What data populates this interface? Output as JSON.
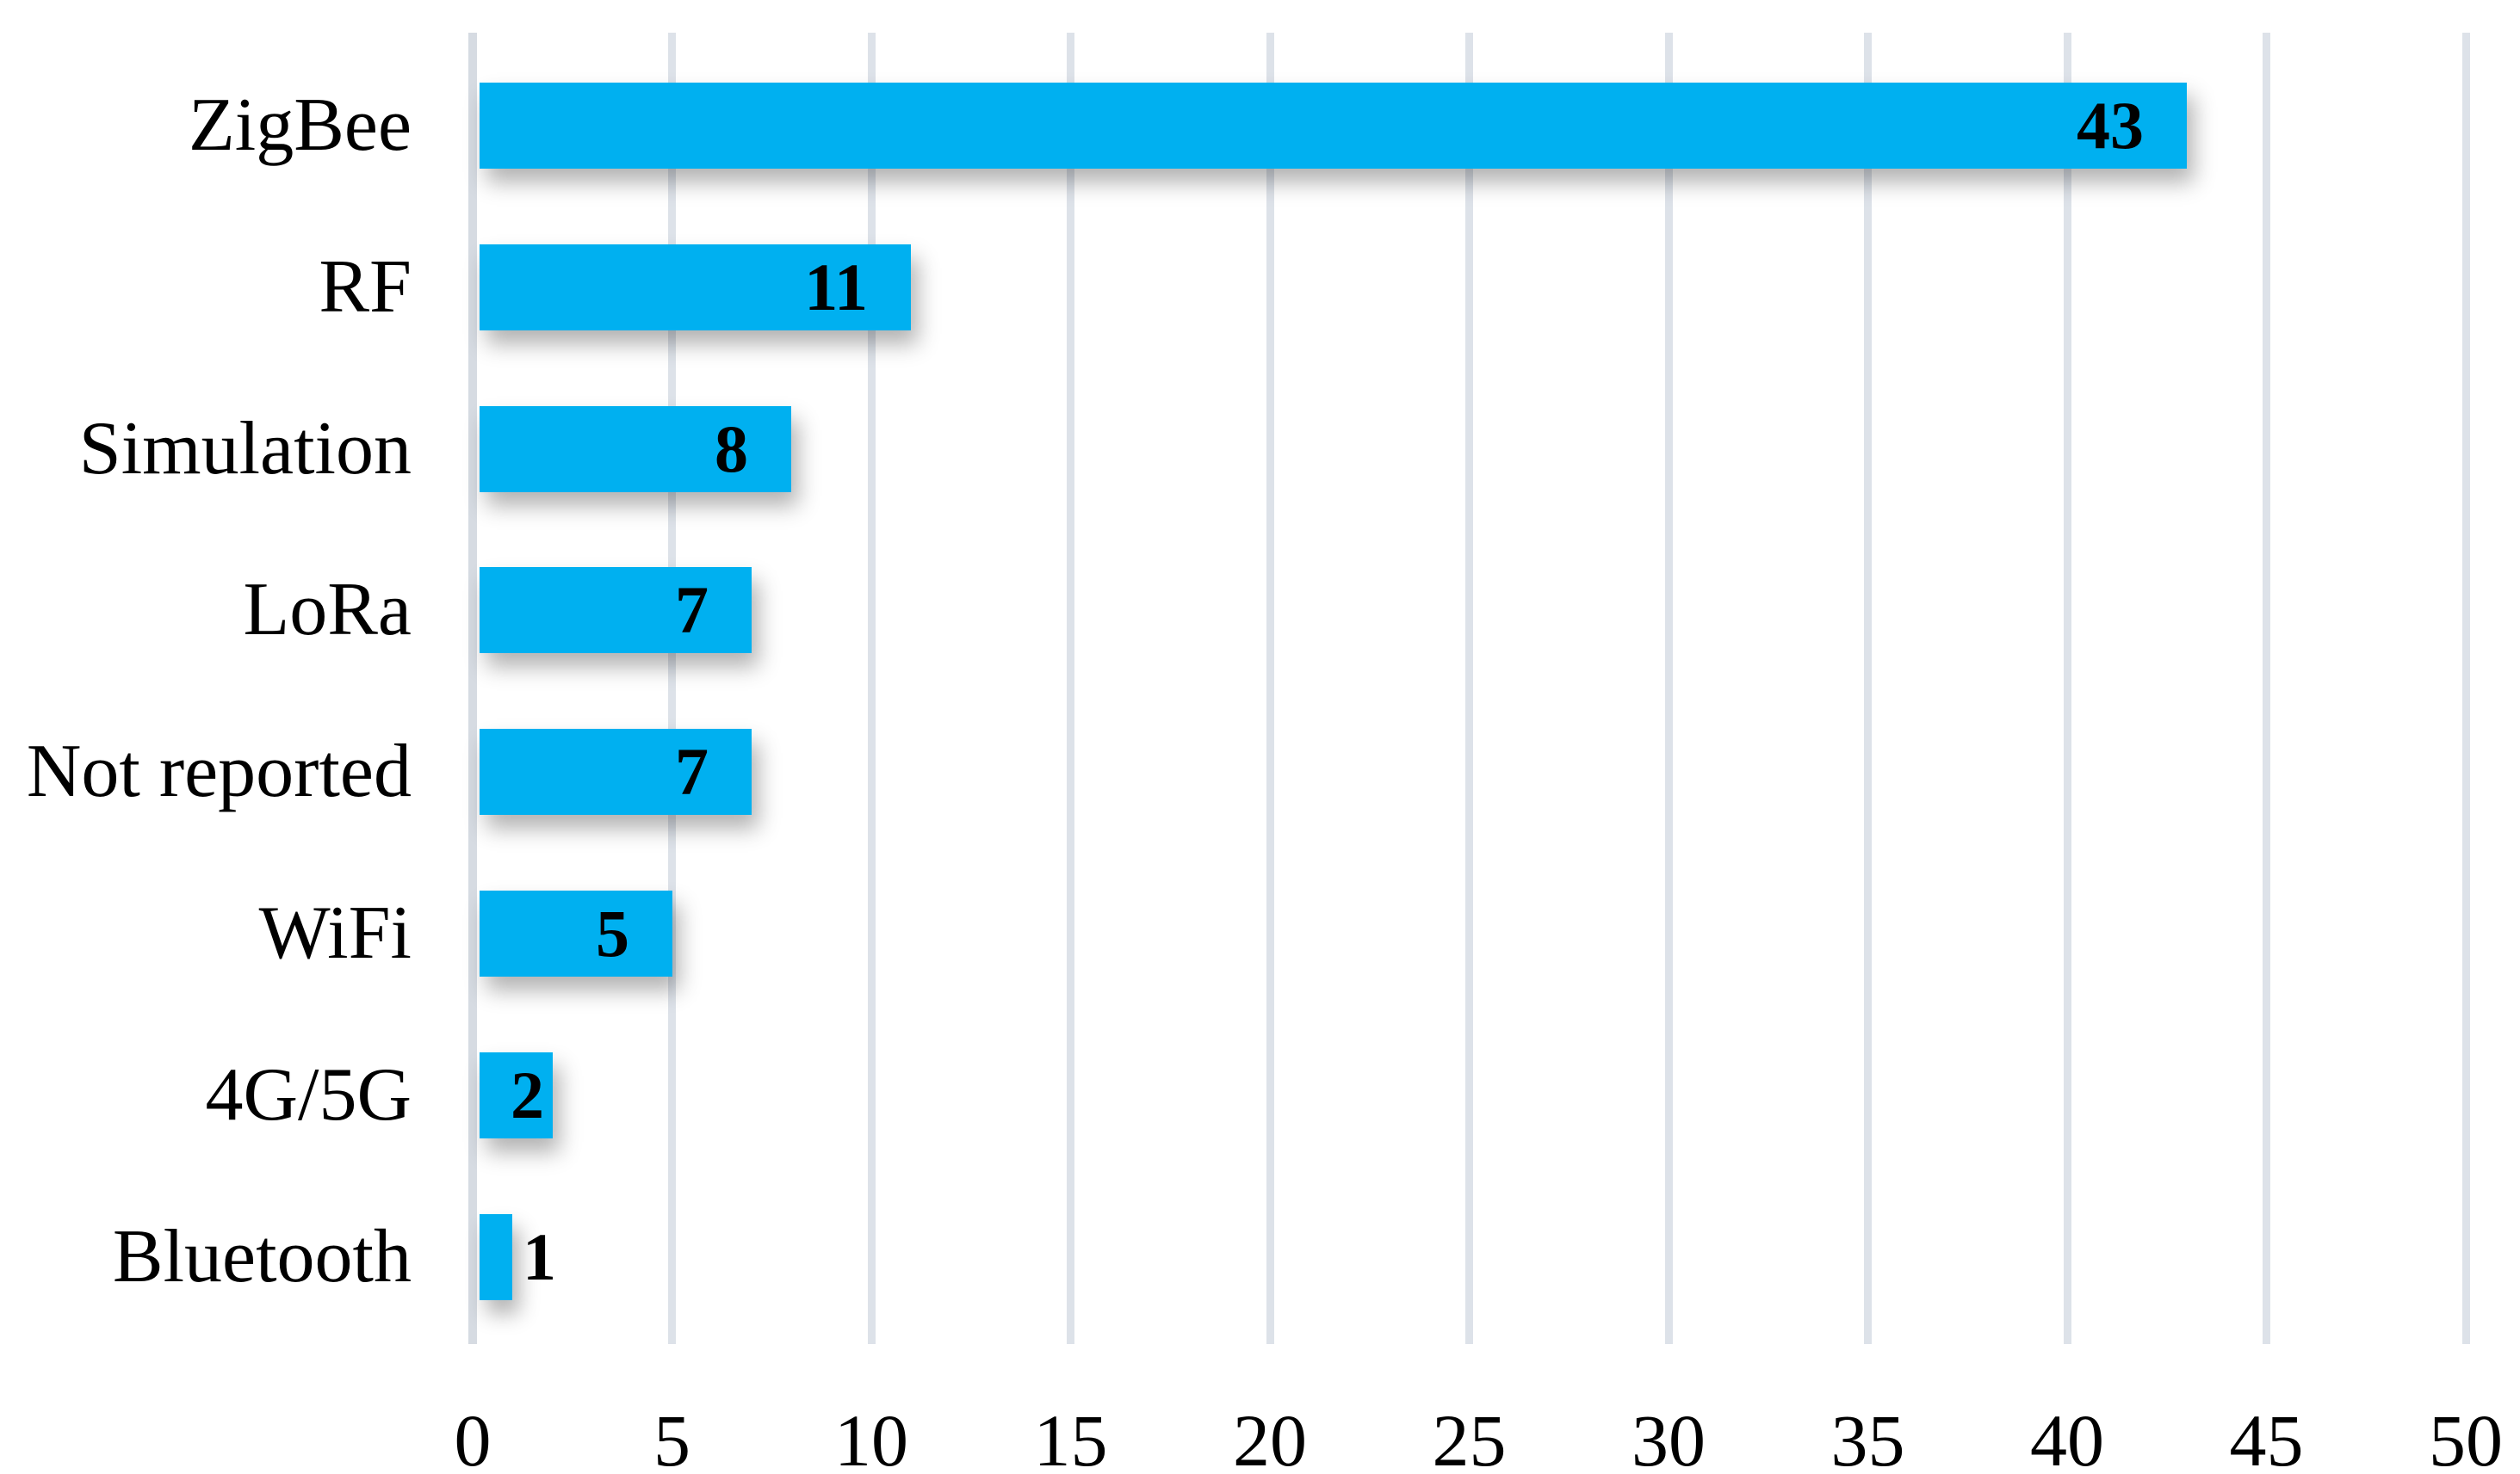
{
  "chart_data": {
    "type": "bar",
    "orientation": "horizontal",
    "title": "",
    "xlabel": "",
    "ylabel": "",
    "categories": [
      "ZigBee",
      "RF",
      "Simulation",
      "LoRa",
      "Not reported",
      "WiFi",
      "4G/5G",
      "Bluetooth"
    ],
    "values": [
      43,
      11,
      8,
      7,
      7,
      5,
      2,
      1
    ],
    "data_labels": [
      "43",
      "11",
      "8",
      "7",
      "7",
      "5",
      "2",
      "1"
    ],
    "xlim": [
      0,
      50
    ],
    "xticks": [
      0,
      5,
      10,
      15,
      20,
      25,
      30,
      35,
      40,
      45,
      50
    ],
    "grid": "vertical-gridlines-on",
    "legend": "none",
    "colors": {
      "bar": "#00b0f0",
      "gridline": "#dde2e9",
      "zero_axis_line": "#d6dbe2",
      "text": "#000000",
      "background": "#ffffff"
    }
  }
}
